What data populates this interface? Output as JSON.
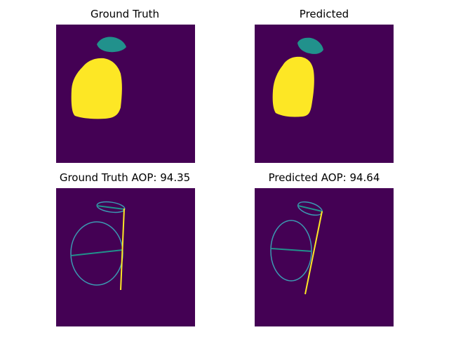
{
  "colors": {
    "background": "#440154",
    "class_1": "#21918c",
    "class_2": "#fde725",
    "ellipse_outline": "#3b9ab2"
  },
  "panels": [
    {
      "title": "Ground Truth"
    },
    {
      "title": "Predicted"
    },
    {
      "title": "Ground Truth AOP: 94.35"
    },
    {
      "title": "Predicted AOP: 94.64"
    }
  ]
}
